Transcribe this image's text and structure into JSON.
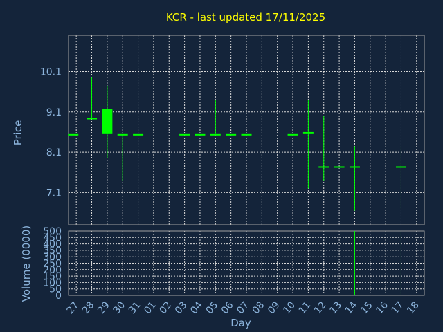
{
  "chart_data": {
    "type": "candlestick",
    "title": "KCR - last updated 17/11/2025",
    "xlabel": "Day",
    "ylabel_price": "Price",
    "ylabel_volume": "Volume (0000)",
    "x_ticks": [
      "27",
      "28",
      "29",
      "30",
      "31",
      "01",
      "02",
      "03",
      "04",
      "05",
      "06",
      "07",
      "08",
      "09",
      "10",
      "11",
      "12",
      "13",
      "14",
      "15",
      "16",
      "17",
      "18"
    ],
    "price_ticks": [
      7.1,
      8.1,
      9.1,
      10.1
    ],
    "price_tick_labels": [
      "7.1",
      "8.1",
      "9.1",
      "10.1"
    ],
    "price_range": [
      6.3,
      11.0
    ],
    "volume_ticks": [
      0,
      50,
      100,
      150,
      200,
      250,
      300,
      350,
      400,
      450,
      500
    ],
    "volume_tick_labels": [
      "0",
      "50",
      "100",
      "150",
      "200",
      "250",
      "300",
      "350",
      "400",
      "450",
      "500"
    ],
    "volume_range": [
      0,
      500
    ],
    "up_color": "#00ff00",
    "down_color": "#00ff00",
    "candles": [
      {
        "day": 26.8,
        "open": 8.55,
        "high": 8.55,
        "low": 8.55,
        "close": 8.55,
        "volume": 0
      },
      {
        "day": 28,
        "open": 8.95,
        "high": 9.95,
        "low": 8.95,
        "close": 8.95,
        "volume": 0
      },
      {
        "day": 29,
        "open": 8.55,
        "high": 9.75,
        "low": 7.95,
        "close": 9.18,
        "volume": 0
      },
      {
        "day": 30,
        "open": 8.55,
        "high": 8.55,
        "low": 7.4,
        "close": 8.55,
        "volume": 0
      },
      {
        "day": 31,
        "open": 8.55,
        "high": 8.55,
        "low": 8.55,
        "close": 8.55,
        "volume": 0
      },
      {
        "day": 34,
        "open": 8.55,
        "high": 8.55,
        "low": 8.55,
        "close": 8.55,
        "volume": 0
      },
      {
        "day": 35,
        "open": 8.55,
        "high": 8.55,
        "low": 8.55,
        "close": 8.55,
        "volume": 0
      },
      {
        "day": 36,
        "open": 8.55,
        "high": 9.4,
        "low": 8.55,
        "close": 8.55,
        "volume": 0
      },
      {
        "day": 37,
        "open": 8.55,
        "high": 8.55,
        "low": 8.55,
        "close": 8.55,
        "volume": 0
      },
      {
        "day": 38,
        "open": 8.55,
        "high": 8.55,
        "low": 8.55,
        "close": 8.55,
        "volume": 0
      },
      {
        "day": 41,
        "open": 8.55,
        "high": 8.55,
        "low": 8.55,
        "close": 8.55,
        "volume": 0
      },
      {
        "day": 42,
        "open": 8.55,
        "high": 9.4,
        "low": 7.2,
        "close": 8.6,
        "volume": 0
      },
      {
        "day": 43,
        "open": 7.75,
        "high": 9.0,
        "low": 7.4,
        "close": 7.75,
        "volume": 0
      },
      {
        "day": 44,
        "open": 7.75,
        "high": 7.75,
        "low": 7.75,
        "close": 7.75,
        "volume": 0
      },
      {
        "day": 45,
        "open": 7.75,
        "high": 8.25,
        "low": 6.65,
        "close": 7.75,
        "volume": 500
      },
      {
        "day": 48,
        "open": 7.75,
        "high": 8.25,
        "low": 6.7,
        "close": 7.75,
        "volume": 500
      }
    ]
  }
}
